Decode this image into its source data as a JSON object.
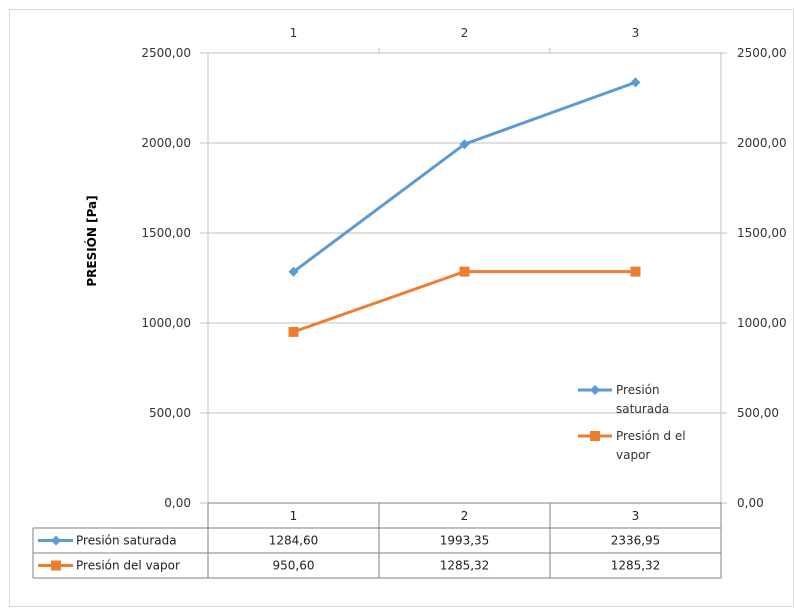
{
  "chart_data": {
    "type": "line",
    "categories": [
      "1",
      "2",
      "3"
    ],
    "ylabel": "PRESIÓN  [Pa]",
    "ylim": [
      0,
      2500
    ],
    "y_ticks": [
      "0,00",
      "500,00",
      "1000,00",
      "1500,00",
      "2000,00",
      "2500,00"
    ],
    "y2_ticks": [
      "0,00",
      "500,00",
      "1000,00",
      "1500,00",
      "2000,00",
      "2500,00"
    ],
    "grid": true,
    "legend_position": "right",
    "series": [
      {
        "name": "Presión saturada",
        "legend_lines": [
          "Presión",
          "saturada"
        ],
        "values": [
          1284.6,
          1993.35,
          2336.95
        ],
        "value_labels": [
          "1284,60",
          "1993,35",
          "2336,95"
        ],
        "color": "#5b9bd5",
        "marker": "diamond"
      },
      {
        "name": "Presión del vapor",
        "legend_lines": [
          "Presión d el",
          "vapor"
        ],
        "values": [
          950.6,
          1285.32,
          1285.32
        ],
        "value_labels": [
          "950,60",
          "1285,32",
          "1285,32"
        ],
        "color": "#ed7d31",
        "marker": "square"
      }
    ],
    "data_table": true
  }
}
